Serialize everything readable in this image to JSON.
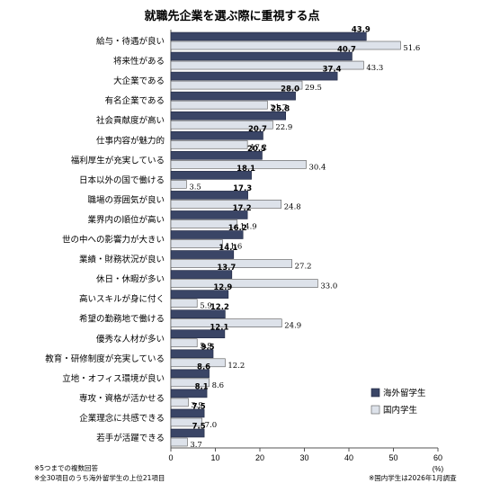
{
  "chart_data": {
    "type": "bar",
    "orientation": "horizontal",
    "title": "就職先企業を選ぶ際に重視する点",
    "categories": [
      "給与・待遇が良い",
      "将来性がある",
      "大企業である",
      "有名企業である",
      "社会貢献度が高い",
      "仕事内容が魅力的",
      "福利厚生が充実している",
      "日本以外の国で働ける",
      "職場の雰囲気が良い",
      "業界内の順位が高い",
      "世の中への影響力が大きい",
      "業績・財務状況が良い",
      "休日・休暇が多い",
      "高いスキルが身に付く",
      "希望の勤務地で働ける",
      "優秀な人材が多い",
      "教育・研修制度が充実している",
      "立地・オフィス環境が良い",
      "専攻・資格が活かせる",
      "企業理念に共感できる",
      "若手が活躍できる"
    ],
    "series": [
      {
        "name": "海外留学生",
        "color": "#3a4566",
        "values": [
          43.9,
          40.7,
          37.4,
          28.0,
          25.8,
          20.7,
          20.5,
          18.1,
          17.3,
          17.2,
          16.2,
          14.1,
          13.7,
          12.9,
          12.2,
          12.1,
          9.5,
          8.6,
          8.1,
          7.5,
          7.5
        ]
      },
      {
        "name": "国内学生",
        "color": "#dde2ea",
        "values": [
          51.6,
          43.3,
          29.5,
          21.7,
          22.9,
          17.2,
          30.4,
          3.5,
          24.8,
          14.9,
          11.6,
          27.2,
          33.0,
          5.9,
          24.9,
          5.9,
          12.2,
          8.6,
          3.9,
          7.0,
          3.7
        ]
      }
    ],
    "value_labels": {
      "s1": [
        "43.9",
        "40.7",
        "37.4",
        "28.0",
        "25.8",
        "20.7",
        "20.5",
        "18.1",
        "17.3",
        "17.2",
        "16.2",
        "14.1",
        "13.7",
        "12.9",
        "12.2",
        "12.1",
        "9.5",
        "8.6",
        "8.1",
        "7.5",
        "7.5"
      ],
      "s2": [
        "51.6",
        "43.3",
        "29.5",
        "21.7",
        "22.9",
        "17.2",
        "30.4",
        "3.5",
        "24.8",
        "14.9",
        "11.6",
        "27.2",
        "33.0",
        "5.9",
        "24.9",
        "5.9",
        "12.2",
        "8.6",
        "3.9",
        "7.0",
        "3.7"
      ]
    },
    "xlim": [
      0,
      60
    ],
    "xticks": [
      "0",
      "10",
      "20",
      "30",
      "40",
      "50",
      "60"
    ],
    "unit": "(%)",
    "legend_position": "right-lower",
    "grid": false
  },
  "notes": {
    "left_1": "※5つまでの複数回答",
    "left_2": "※全30項目のうち海外留学生の上位21項目",
    "right": "※国内学生は2026年1月調査"
  }
}
